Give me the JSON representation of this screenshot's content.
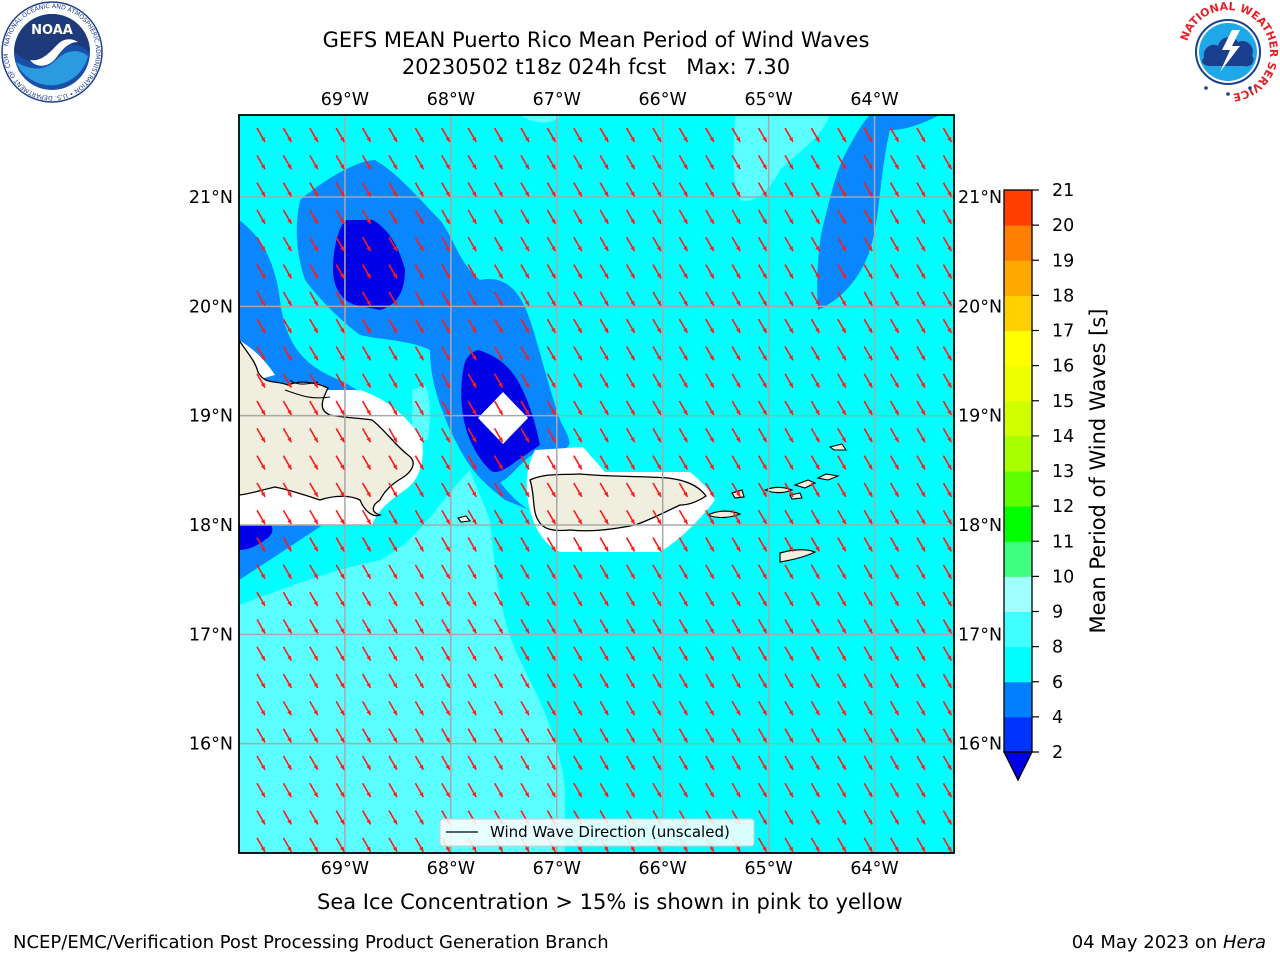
{
  "title": {
    "line1": "GEFS MEAN Puerto Rico Mean Period of Wind Waves",
    "line2": "20230502 t18z 024h fcst   Max: 7.30"
  },
  "logos": {
    "left": {
      "icon": "noaa-logo",
      "text": "NOAA",
      "ring": "NATIONAL OCEANIC AND ATMOSPHERIC ADMINISTRATION • U.S. DEPARTMENT OF COMMERCE"
    },
    "right": {
      "icon": "nws-logo",
      "ring": "NATIONAL WEATHER SERVICE"
    }
  },
  "map": {
    "lon_range": [
      -70.0,
      -63.25
    ],
    "lat_range": [
      15.0,
      21.75
    ],
    "lon_ticks": [
      "69°W",
      "68°W",
      "67°W",
      "66°W",
      "65°W",
      "64°W"
    ],
    "lat_ticks": [
      "21°N",
      "20°N",
      "19°N",
      "18°N",
      "17°N",
      "16°N"
    ],
    "grid": true,
    "arrow_direction_deg": 300,
    "arrow_color": "#ff1a1a",
    "ocean_color": "#00ffff",
    "land_color": "#efeedf",
    "legend": {
      "label": "Wind Wave Direction (unscaled)",
      "placement": "bottom-center"
    }
  },
  "colorbar": {
    "label": "Mean Period of Wind Waves [s]",
    "extend": "min",
    "ticks": [
      "2",
      "4",
      "6",
      "8",
      "9",
      "10",
      "11",
      "12",
      "13",
      "14",
      "15",
      "16",
      "17",
      "18",
      "19",
      "20",
      "21"
    ],
    "colors": [
      "#0033ff",
      "#007fff",
      "#00ffff",
      "#40ffff",
      "#a0ffff",
      "#40ff80",
      "#00ff00",
      "#60ff00",
      "#a8ff00",
      "#d0ff00",
      "#f0ff00",
      "#ffff00",
      "#ffd000",
      "#ffa800",
      "#ff7f00",
      "#ff4000",
      "#ff0000"
    ],
    "extend_color": "#0000e6"
  },
  "caption": "Sea Ice Concentration > 15% is shown in pink to yellow",
  "footer": {
    "left": "NCEP/EMC/Verification Post Processing Product Generation Branch",
    "right_date": "04 May 2023 on ",
    "right_host": "Hera"
  }
}
